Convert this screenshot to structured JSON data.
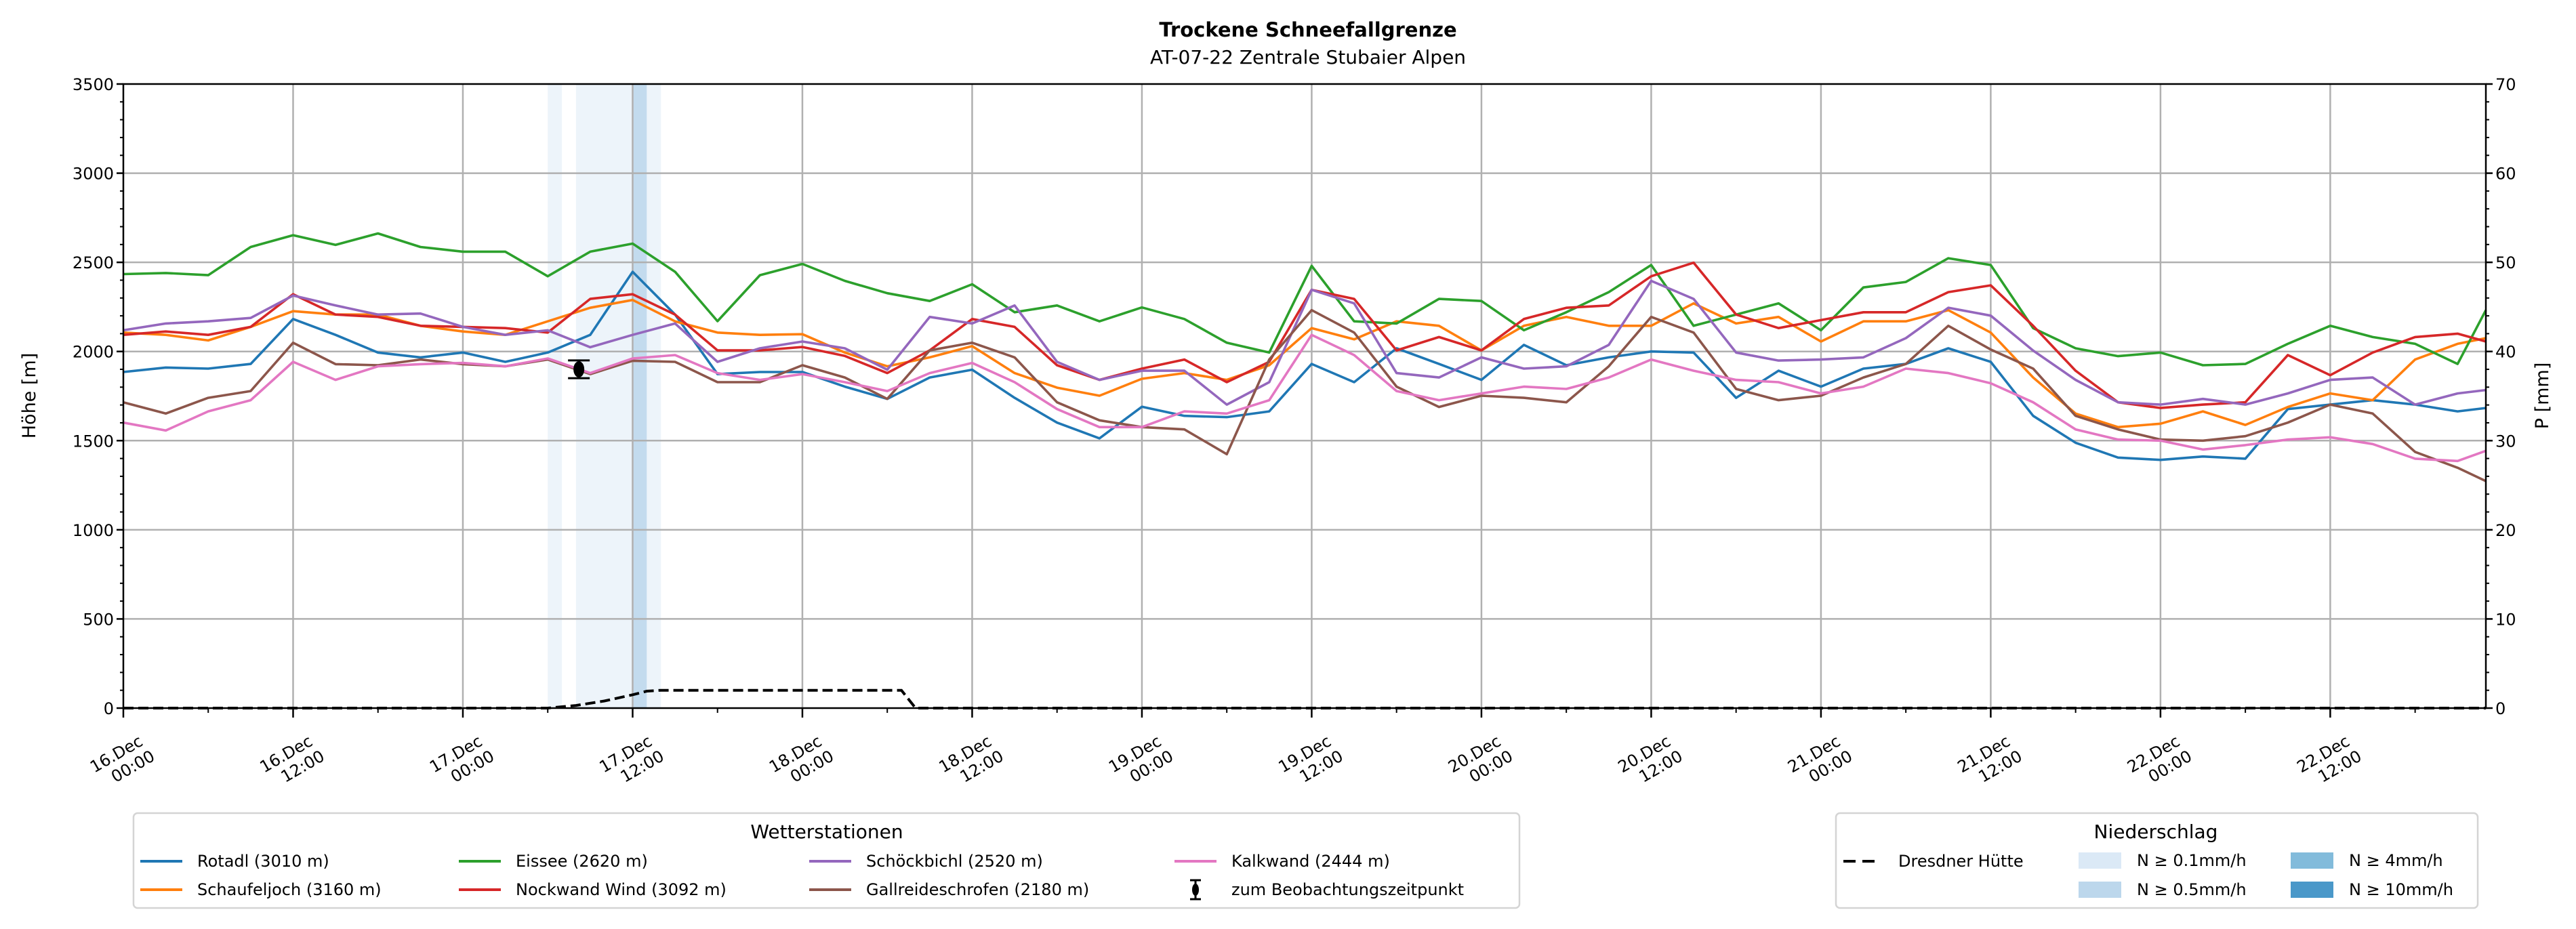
{
  "chart_data": {
    "type": "line",
    "title": "Trockene Schneefallgrenze",
    "subtitle": "AT-07-22 Zentrale Stubaier Alpen",
    "ylabel": "Höhe [m]",
    "ylabel_right": "P [mm]",
    "ylim": [
      0,
      3500
    ],
    "ylim_right": [
      0,
      70
    ],
    "yticks": [
      0,
      500,
      1000,
      1500,
      2000,
      2500,
      3000,
      3500
    ],
    "yticks_right": [
      0,
      10,
      20,
      30,
      40,
      50,
      60,
      70
    ],
    "x_unit": "hours since 16.Dec 00:00",
    "xlim": [
      0,
      167
    ],
    "xticks": [
      {
        "hour": 0,
        "date": "16.Dec",
        "time": "00:00"
      },
      {
        "hour": 12,
        "date": "16.Dec",
        "time": "12:00"
      },
      {
        "hour": 24,
        "date": "17.Dec",
        "time": "00:00"
      },
      {
        "hour": 36,
        "date": "17.Dec",
        "time": "12:00"
      },
      {
        "hour": 48,
        "date": "18.Dec",
        "time": "00:00"
      },
      {
        "hour": 60,
        "date": "18.Dec",
        "time": "12:00"
      },
      {
        "hour": 72,
        "date": "19.Dec",
        "time": "00:00"
      },
      {
        "hour": 84,
        "date": "19.Dec",
        "time": "12:00"
      },
      {
        "hour": 96,
        "date": "20.Dec",
        "time": "00:00"
      },
      {
        "hour": 108,
        "date": "20.Dec",
        "time": "12:00"
      },
      {
        "hour": 120,
        "date": "21.Dec",
        "time": "00:00"
      },
      {
        "hour": 132,
        "date": "21.Dec",
        "time": "12:00"
      },
      {
        "hour": 144,
        "date": "22.Dec",
        "time": "00:00"
      },
      {
        "hour": 156,
        "date": "22.Dec",
        "time": "12:00"
      }
    ],
    "grid": true,
    "x": [
      0,
      3,
      6,
      9,
      12,
      15,
      18,
      21,
      24,
      27,
      30,
      33,
      36,
      39,
      42,
      45,
      48,
      51,
      54,
      57,
      60,
      63,
      66,
      69,
      72,
      75,
      78,
      81,
      84,
      87,
      90,
      93,
      96,
      99,
      102,
      105,
      108,
      111,
      114,
      117,
      120,
      123,
      126,
      129,
      132,
      135,
      138,
      141,
      144,
      147,
      150,
      153,
      156,
      159,
      162,
      165,
      167
    ],
    "series": [
      {
        "name": "Rotadl (3010 m)",
        "color": "#1f77b4",
        "values": [
          1885,
          1910,
          1904,
          1930,
          2182,
          2093,
          1994,
          1967,
          1994,
          1942,
          1994,
          2093,
          2447,
          2207,
          1873,
          1885,
          1885,
          1803,
          1734,
          1854,
          1898,
          1740,
          1601,
          1513,
          1690,
          1639,
          1632,
          1664,
          1930,
          1828,
          2018,
          1930,
          1841,
          2037,
          1923,
          1967,
          2000,
          1994,
          1740,
          1892,
          1803,
          1904,
          1930,
          2018,
          1942,
          1639,
          1488,
          1405,
          1392,
          1411,
          1399,
          1677,
          1702,
          1727,
          1702,
          1664,
          1683
        ]
      },
      {
        "name": "Schaufeljoch (3160 m)",
        "color": "#ff7f0e",
        "values": [
          2106,
          2093,
          2062,
          2138,
          2226,
          2207,
          2207,
          2144,
          2112,
          2093,
          2169,
          2245,
          2289,
          2169,
          2106,
          2093,
          2097,
          1994,
          1917,
          1967,
          2030,
          1879,
          1797,
          1752,
          1847,
          1879,
          1841,
          1923,
          2131,
          2068,
          2169,
          2144,
          2006,
          2144,
          2194,
          2144,
          2144,
          2270,
          2157,
          2194,
          2056,
          2169,
          2169,
          2232,
          2106,
          1854,
          1652,
          1576,
          1595,
          1664,
          1588,
          1689,
          1765,
          1727,
          1955,
          2043,
          2075
        ]
      },
      {
        "name": "Eissee (2620 m)",
        "color": "#2ca02c",
        "values": [
          2434,
          2440,
          2428,
          2586,
          2652,
          2598,
          2662,
          2586,
          2560,
          2560,
          2422,
          2560,
          2605,
          2447,
          2170,
          2428,
          2491,
          2396,
          2327,
          2283,
          2377,
          2220,
          2258,
          2169,
          2247,
          2182,
          2049,
          1994,
          2480,
          2169,
          2157,
          2295,
          2283,
          2119,
          2220,
          2333,
          2485,
          2144,
          2207,
          2270,
          2119,
          2359,
          2390,
          2523,
          2485,
          2131,
          2018,
          1974,
          1994,
          1923,
          1930,
          2043,
          2144,
          2081,
          2043,
          1930,
          2232
        ]
      },
      {
        "name": "Nockwand Wind (3092 m)",
        "color": "#d62728",
        "values": [
          2093,
          2112,
          2093,
          2138,
          2321,
          2207,
          2194,
          2144,
          2138,
          2131,
          2106,
          2295,
          2321,
          2207,
          2006,
          2006,
          2025,
          1975,
          1879,
          2006,
          2182,
          2138,
          1923,
          1841,
          1904,
          1955,
          1828,
          1942,
          2346,
          2295,
          2006,
          2081,
          2006,
          2182,
          2245,
          2258,
          2422,
          2498,
          2207,
          2131,
          2176,
          2220,
          2220,
          2333,
          2371,
          2144,
          1892,
          1715,
          1683,
          1702,
          1715,
          1980,
          1867,
          1994,
          2081,
          2100,
          2056
        ]
      },
      {
        "name": "Schöckbichl (2520 m)",
        "color": "#9467bd",
        "values": [
          2119,
          2157,
          2169,
          2188,
          2314,
          2258,
          2207,
          2213,
          2138,
          2093,
          2119,
          2024,
          2093,
          2157,
          1942,
          2018,
          2056,
          2018,
          1898,
          2194,
          2157,
          2258,
          1942,
          1841,
          1892,
          1892,
          1702,
          1828,
          2346,
          2270,
          1879,
          1854,
          1967,
          1904,
          1917,
          2037,
          2396,
          2295,
          1994,
          1949,
          1955,
          1967,
          2075,
          2245,
          2201,
          2005,
          1841,
          1715,
          1702,
          1734,
          1702,
          1765,
          1841,
          1854,
          1702,
          1765,
          1784
        ]
      },
      {
        "name": "Gallreideschrofen (2180 m)",
        "color": "#8c564b",
        "values": [
          1715,
          1652,
          1740,
          1778,
          2049,
          1929,
          1923,
          1955,
          1929,
          1917,
          1955,
          1873,
          1948,
          1942,
          1828,
          1828,
          1923,
          1854,
          1734,
          2006,
          2049,
          1967,
          1715,
          1614,
          1576,
          1563,
          1424,
          1955,
          2232,
          2106,
          1803,
          1689,
          1752,
          1740,
          1715,
          1917,
          2194,
          2106,
          1790,
          1727,
          1752,
          1854,
          1930,
          2144,
          2011,
          1904,
          1639,
          1563,
          1506,
          1500,
          1525,
          1601,
          1702,
          1652,
          1437,
          1348,
          1273
        ]
      },
      {
        "name": "Kalkwand (2444 m)",
        "color": "#e377c2",
        "values": [
          1601,
          1557,
          1664,
          1727,
          1942,
          1841,
          1917,
          1929,
          1936,
          1917,
          1961,
          1879,
          1961,
          1980,
          1879,
          1841,
          1873,
          1828,
          1778,
          1879,
          1936,
          1828,
          1677,
          1576,
          1576,
          1664,
          1652,
          1727,
          2093,
          1980,
          1778,
          1727,
          1765,
          1803,
          1790,
          1854,
          1955,
          1892,
          1841,
          1828,
          1765,
          1803,
          1904,
          1879,
          1822,
          1715,
          1563,
          1506,
          1500,
          1450,
          1475,
          1506,
          1519,
          1481,
          1399,
          1386,
          1443
        ]
      }
    ],
    "observation": {
      "name": "zum Beobachtungszeitpunkt",
      "hour": 32.2,
      "value": 1900,
      "error": 50
    },
    "precipitation_line": {
      "name": "Dresdner Hütte",
      "axis": "right",
      "points": [
        [
          0,
          0
        ],
        [
          30,
          0
        ],
        [
          32,
          0.3
        ],
        [
          34,
          0.8
        ],
        [
          36,
          1.5
        ],
        [
          37,
          1.9
        ],
        [
          38,
          2
        ],
        [
          55,
          2
        ],
        [
          56,
          0
        ],
        [
          167,
          0
        ]
      ]
    },
    "precipitation_bands": [
      {
        "start": 30,
        "end": 31,
        "class": 0
      },
      {
        "start": 32,
        "end": 36,
        "class": 0
      },
      {
        "start": 36,
        "end": 37,
        "class": 1
      },
      {
        "start": 37,
        "end": 38,
        "class": 0
      }
    ],
    "precipitation_classes": [
      {
        "label": "N ≥ 0.1mm/h",
        "color": "#dbe9f6"
      },
      {
        "label": "N ≥ 0.5mm/h",
        "color": "#bcd7ec"
      },
      {
        "label": "N ≥ 4mm/h",
        "color": "#82bbdb"
      },
      {
        "label": "N ≥ 10mm/h",
        "color": "#4a98c9"
      }
    ],
    "legend_stations_title": "Wetterstationen",
    "legend_precip_title": "Niederschlag",
    "legend_placement": "bottom"
  }
}
